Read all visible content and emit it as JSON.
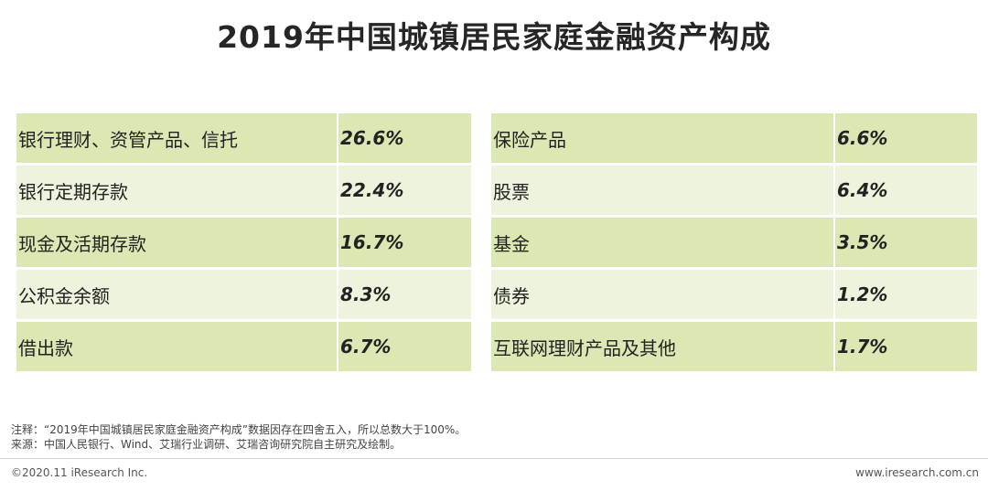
{
  "title": "2019年中国城镇居民家庭金融资产构成",
  "chart_data": {
    "type": "table",
    "title": "2019年中国城镇居民家庭金融资产构成",
    "unit": "%",
    "left": [
      {
        "label": "银行理财、资管产品、信托",
        "value": "26.6%"
      },
      {
        "label": "银行定期存款",
        "value": "22.4%"
      },
      {
        "label": "现金及活期存款",
        "value": "16.7%"
      },
      {
        "label": "公积金余额",
        "value": "8.3%"
      },
      {
        "label": "借出款",
        "value": "6.7%"
      }
    ],
    "right": [
      {
        "label": "保险产品",
        "value": "6.6%"
      },
      {
        "label": "股票",
        "value": "6.4%"
      },
      {
        "label": "基金",
        "value": "3.5%"
      },
      {
        "label": "债券",
        "value": "1.2%"
      },
      {
        "label": "互联网理财产品及其他",
        "value": "1.7%"
      }
    ]
  },
  "notes": {
    "note": "注释：“2019年中国城镇居民家庭金融资产构成”数据因存在四舍五入，所以总数大于100%。",
    "source": "来源：中国人民银行、Wind、艾瑞行业调研、艾瑞咨询研究院自主研究及绘制。"
  },
  "footer": {
    "copyright": "©2020.11 iResearch Inc.",
    "website": "www.iresearch.com.cn"
  },
  "colors": {
    "row_dark": "#dbe8b4",
    "row_light": "#edf3dc"
  }
}
